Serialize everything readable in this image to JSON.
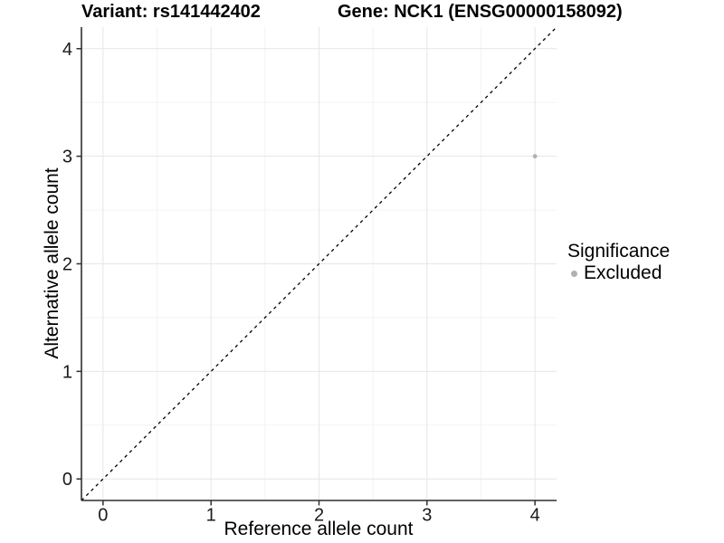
{
  "titles": {
    "variant": "Variant: rs141442402",
    "gene": "Gene: NCK1 (ENSG00000158092)"
  },
  "legend": {
    "title": "Significance",
    "items": [
      {
        "label": "Excluded",
        "color": "#b0b0b0"
      }
    ]
  },
  "colors": {
    "axis_line": "#2f2f2f",
    "tick_mark": "#2f2f2f",
    "tick_label": "#1a1a1a",
    "major_grid": "#e6e6e6",
    "minor_grid": "#f3f3f3",
    "identity_line": "#000000",
    "point": "#b0b0b0",
    "panel_background": "#ffffff"
  },
  "chart_data": {
    "type": "scatter",
    "title": "Variant: rs141442402 | Gene: NCK1 (ENSG00000158092)",
    "xlabel": "Reference allele count",
    "ylabel": "Alternative allele count",
    "xlim": [
      -0.2,
      4.2
    ],
    "ylim": [
      -0.2,
      4.2
    ],
    "x_ticks": [
      0,
      1,
      2,
      3,
      4
    ],
    "y_ticks": [
      0,
      1,
      2,
      3,
      4
    ],
    "grid": "major and minor (0.5 steps), light gray on white",
    "legend_position": "right",
    "legend_title": "Significance",
    "series": [
      {
        "name": "Excluded",
        "color": "#b0b0b0",
        "points": [
          {
            "x": 4,
            "y": 3
          }
        ]
      }
    ],
    "reference_line": {
      "description": "identity line y = x",
      "style": "dashed",
      "color": "#000000",
      "from": [
        -0.2,
        -0.2
      ],
      "to": [
        4.2,
        4.2
      ]
    }
  }
}
